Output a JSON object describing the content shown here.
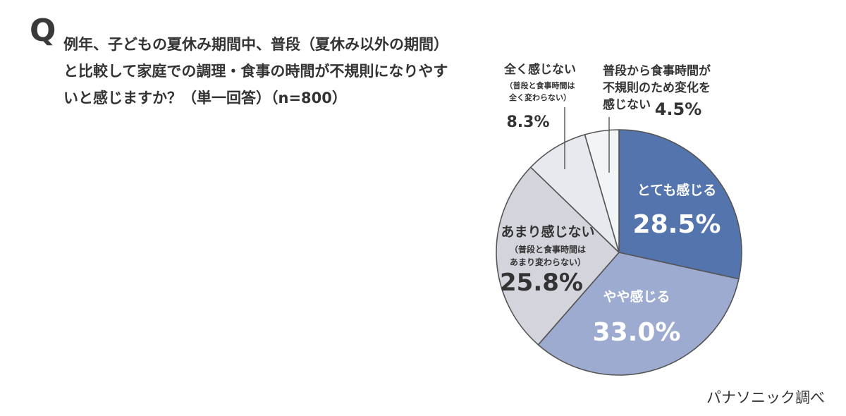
{
  "question": {
    "mark": "Q",
    "lines": [
      "例年、子どもの夏休み期間中、普段（夏休み以外の期間）",
      "と比較して家庭での調理・食事の時間が不規則になりやす",
      "いと感じますか？（単一回答）（n=800）"
    ]
  },
  "source": "パナソニック調べ",
  "chart_data": {
    "type": "pie",
    "title": "",
    "slices": [
      {
        "label": "とても感じる",
        "sublines": [],
        "value": 28.5,
        "value_text": "28.5%",
        "color": "#5374ad"
      },
      {
        "label": "やや感じる",
        "sublines": [],
        "value": 33.0,
        "value_text": "33.0%",
        "color": "#9cabcf"
      },
      {
        "label": "あまり感じない",
        "sublines": [
          "（普段と食事時間は",
          "あまり変わらない）"
        ],
        "value": 25.8,
        "value_text": "25.8%",
        "color": "#d4d5dc"
      },
      {
        "label": "全く感じない",
        "sublines": [
          "（普段と食事時間は",
          "全く変わらない）"
        ],
        "value": 8.3,
        "value_text": "8.3%",
        "color": "#e8e9ee"
      },
      {
        "label": "普段から食事時間が不規則のため変化を感じない",
        "label_lines": [
          "普段から食事時間が",
          "不規則のため変化を",
          "感じない"
        ],
        "sublines": [],
        "value": 4.5,
        "value_text": "4.5%",
        "color": "#f3f4f6"
      }
    ],
    "start": "12 o'clock",
    "direction": "clockwise",
    "stroke_color": "#555555"
  }
}
